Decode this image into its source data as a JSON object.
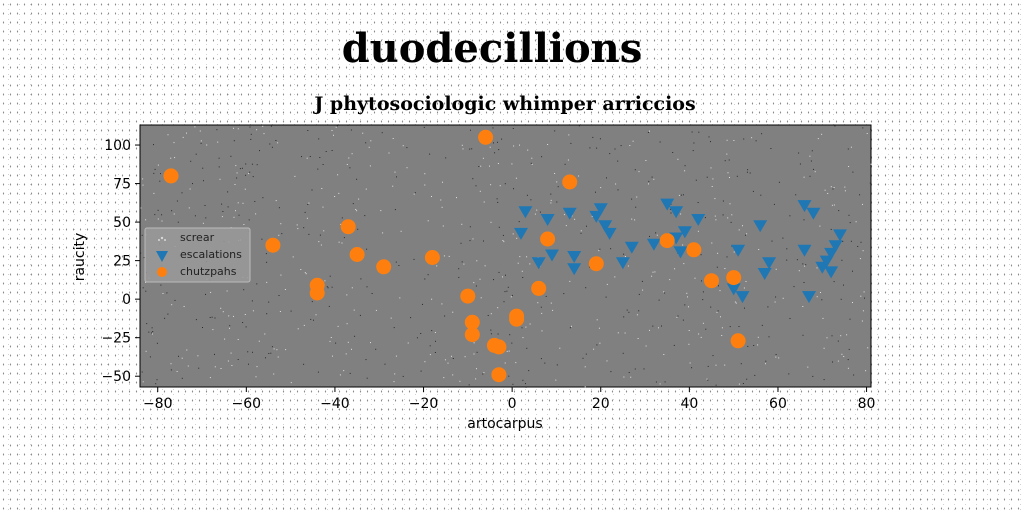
{
  "chart_data": {
    "type": "scatter",
    "suptitle": "duodecillions",
    "title": "J phytosociologic whimper arriccios",
    "xlabel": "artocarpus",
    "ylabel": "raucity",
    "xlim": [
      -84,
      81
    ],
    "ylim": [
      -57,
      113
    ],
    "xticks": [
      -80,
      -60,
      -40,
      -20,
      0,
      20,
      40,
      60,
      80
    ],
    "yticks": [
      -50,
      -25,
      0,
      25,
      50,
      75,
      100
    ],
    "xtick_labels": [
      "−80",
      "−60",
      "−40",
      "−20",
      "0",
      "20",
      "40",
      "60",
      "80"
    ],
    "ytick_labels": [
      "−50",
      "−25",
      "0",
      "25",
      "50",
      "75",
      "100"
    ],
    "background": "#808080",
    "legend": {
      "position": "center-left"
    },
    "series": [
      {
        "name": "screar",
        "marker": "dot",
        "color": "#d8d8d8",
        "x": [],
        "y": []
      },
      {
        "name": "escalations",
        "marker": "triangle-down",
        "color": "#1f77b4",
        "x": [
          3,
          2,
          8,
          6,
          9,
          13,
          14,
          14,
          19,
          20,
          21,
          22,
          25,
          27,
          32,
          35,
          37,
          38,
          37,
          39,
          42,
          50,
          52,
          51,
          56,
          57,
          58,
          66,
          66,
          67,
          68,
          70,
          71,
          72,
          72,
          73,
          74
        ],
        "y": [
          57,
          43,
          52,
          24,
          29,
          56,
          20,
          28,
          54,
          59,
          48,
          43,
          24,
          34,
          36,
          62,
          57,
          31,
          40,
          44,
          52,
          7,
          2,
          32,
          48,
          17,
          24,
          61,
          32,
          2,
          56,
          21,
          25,
          30,
          18,
          35,
          42
        ]
      },
      {
        "name": "chutzpahs",
        "marker": "circle",
        "color": "#ff7f0e",
        "x": [
          -77,
          -54,
          -44,
          -44,
          -37,
          -35,
          -29,
          -18,
          -10,
          -9,
          -9,
          -6,
          -4,
          -3,
          -3,
          1,
          1,
          6,
          8,
          13,
          19,
          35,
          41,
          45,
          50,
          51
        ],
        "y": [
          80,
          35,
          9,
          4,
          47,
          29,
          21,
          27,
          2,
          -15,
          -23,
          105,
          -30,
          -31,
          -49,
          -11,
          -13,
          7,
          39,
          76,
          23,
          38,
          32,
          12,
          14,
          -27
        ]
      }
    ]
  }
}
